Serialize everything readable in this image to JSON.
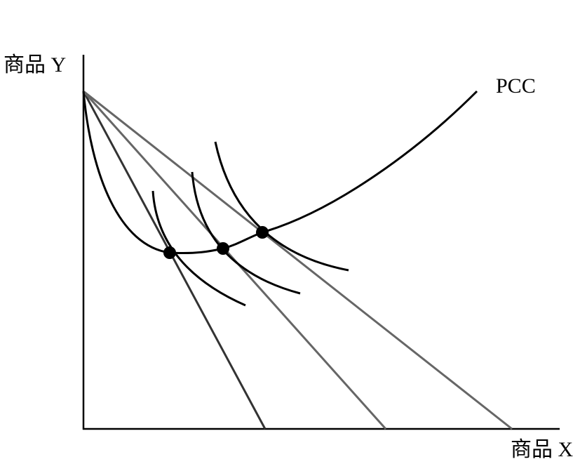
{
  "axes": {
    "y_label": "商品 Y",
    "x_label": "商品 X"
  },
  "curve_label": "PCC"
}
